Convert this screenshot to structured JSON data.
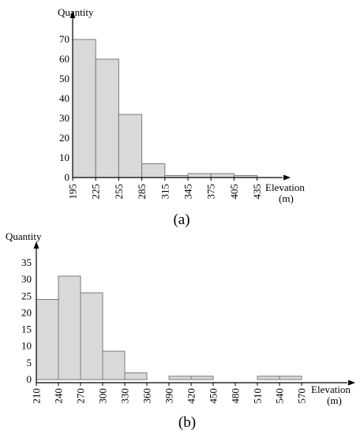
{
  "chart_data": [
    {
      "type": "bar",
      "panel_label": "(a)",
      "ylabel": "Quantity",
      "xlabel": "Elevation",
      "xlabel_unit": "(m)",
      "x_ticks": [
        "195",
        "225",
        "255",
        "285",
        "315",
        "345",
        "375",
        "405",
        "435"
      ],
      "y_ticks": [
        "0",
        "10",
        "20",
        "30",
        "40",
        "50",
        "60",
        "70"
      ],
      "ylim": [
        0,
        75
      ],
      "bins": [
        [
          195,
          225
        ],
        [
          225,
          255
        ],
        [
          255,
          285
        ],
        [
          285,
          315
        ],
        [
          315,
          345
        ],
        [
          345,
          375
        ],
        [
          375,
          405
        ],
        [
          405,
          435
        ]
      ],
      "values": [
        70,
        60,
        32,
        7,
        1,
        2,
        2,
        1
      ]
    },
    {
      "type": "bar",
      "panel_label": "(b)",
      "ylabel": "Quantity",
      "xlabel": "Elevation",
      "xlabel_unit": "(m)",
      "x_ticks": [
        "210",
        "240",
        "270",
        "300",
        "330",
        "360",
        "390",
        "420",
        "450",
        "480",
        "510",
        "540",
        "570"
      ],
      "y_ticks": [
        "0",
        "5",
        "10",
        "15",
        "20",
        "25",
        "30",
        "35"
      ],
      "ylim": [
        0,
        37
      ],
      "bins": [
        [
          210,
          240
        ],
        [
          240,
          270
        ],
        [
          270,
          300
        ],
        [
          300,
          330
        ],
        [
          330,
          360
        ],
        [
          360,
          390
        ],
        [
          390,
          420
        ],
        [
          420,
          450
        ],
        [
          450,
          480
        ],
        [
          480,
          510
        ],
        [
          510,
          540
        ],
        [
          540,
          570
        ]
      ],
      "values": [
        24,
        31,
        26,
        8.5,
        2,
        0,
        1,
        1,
        0,
        0,
        1,
        1
      ]
    }
  ]
}
